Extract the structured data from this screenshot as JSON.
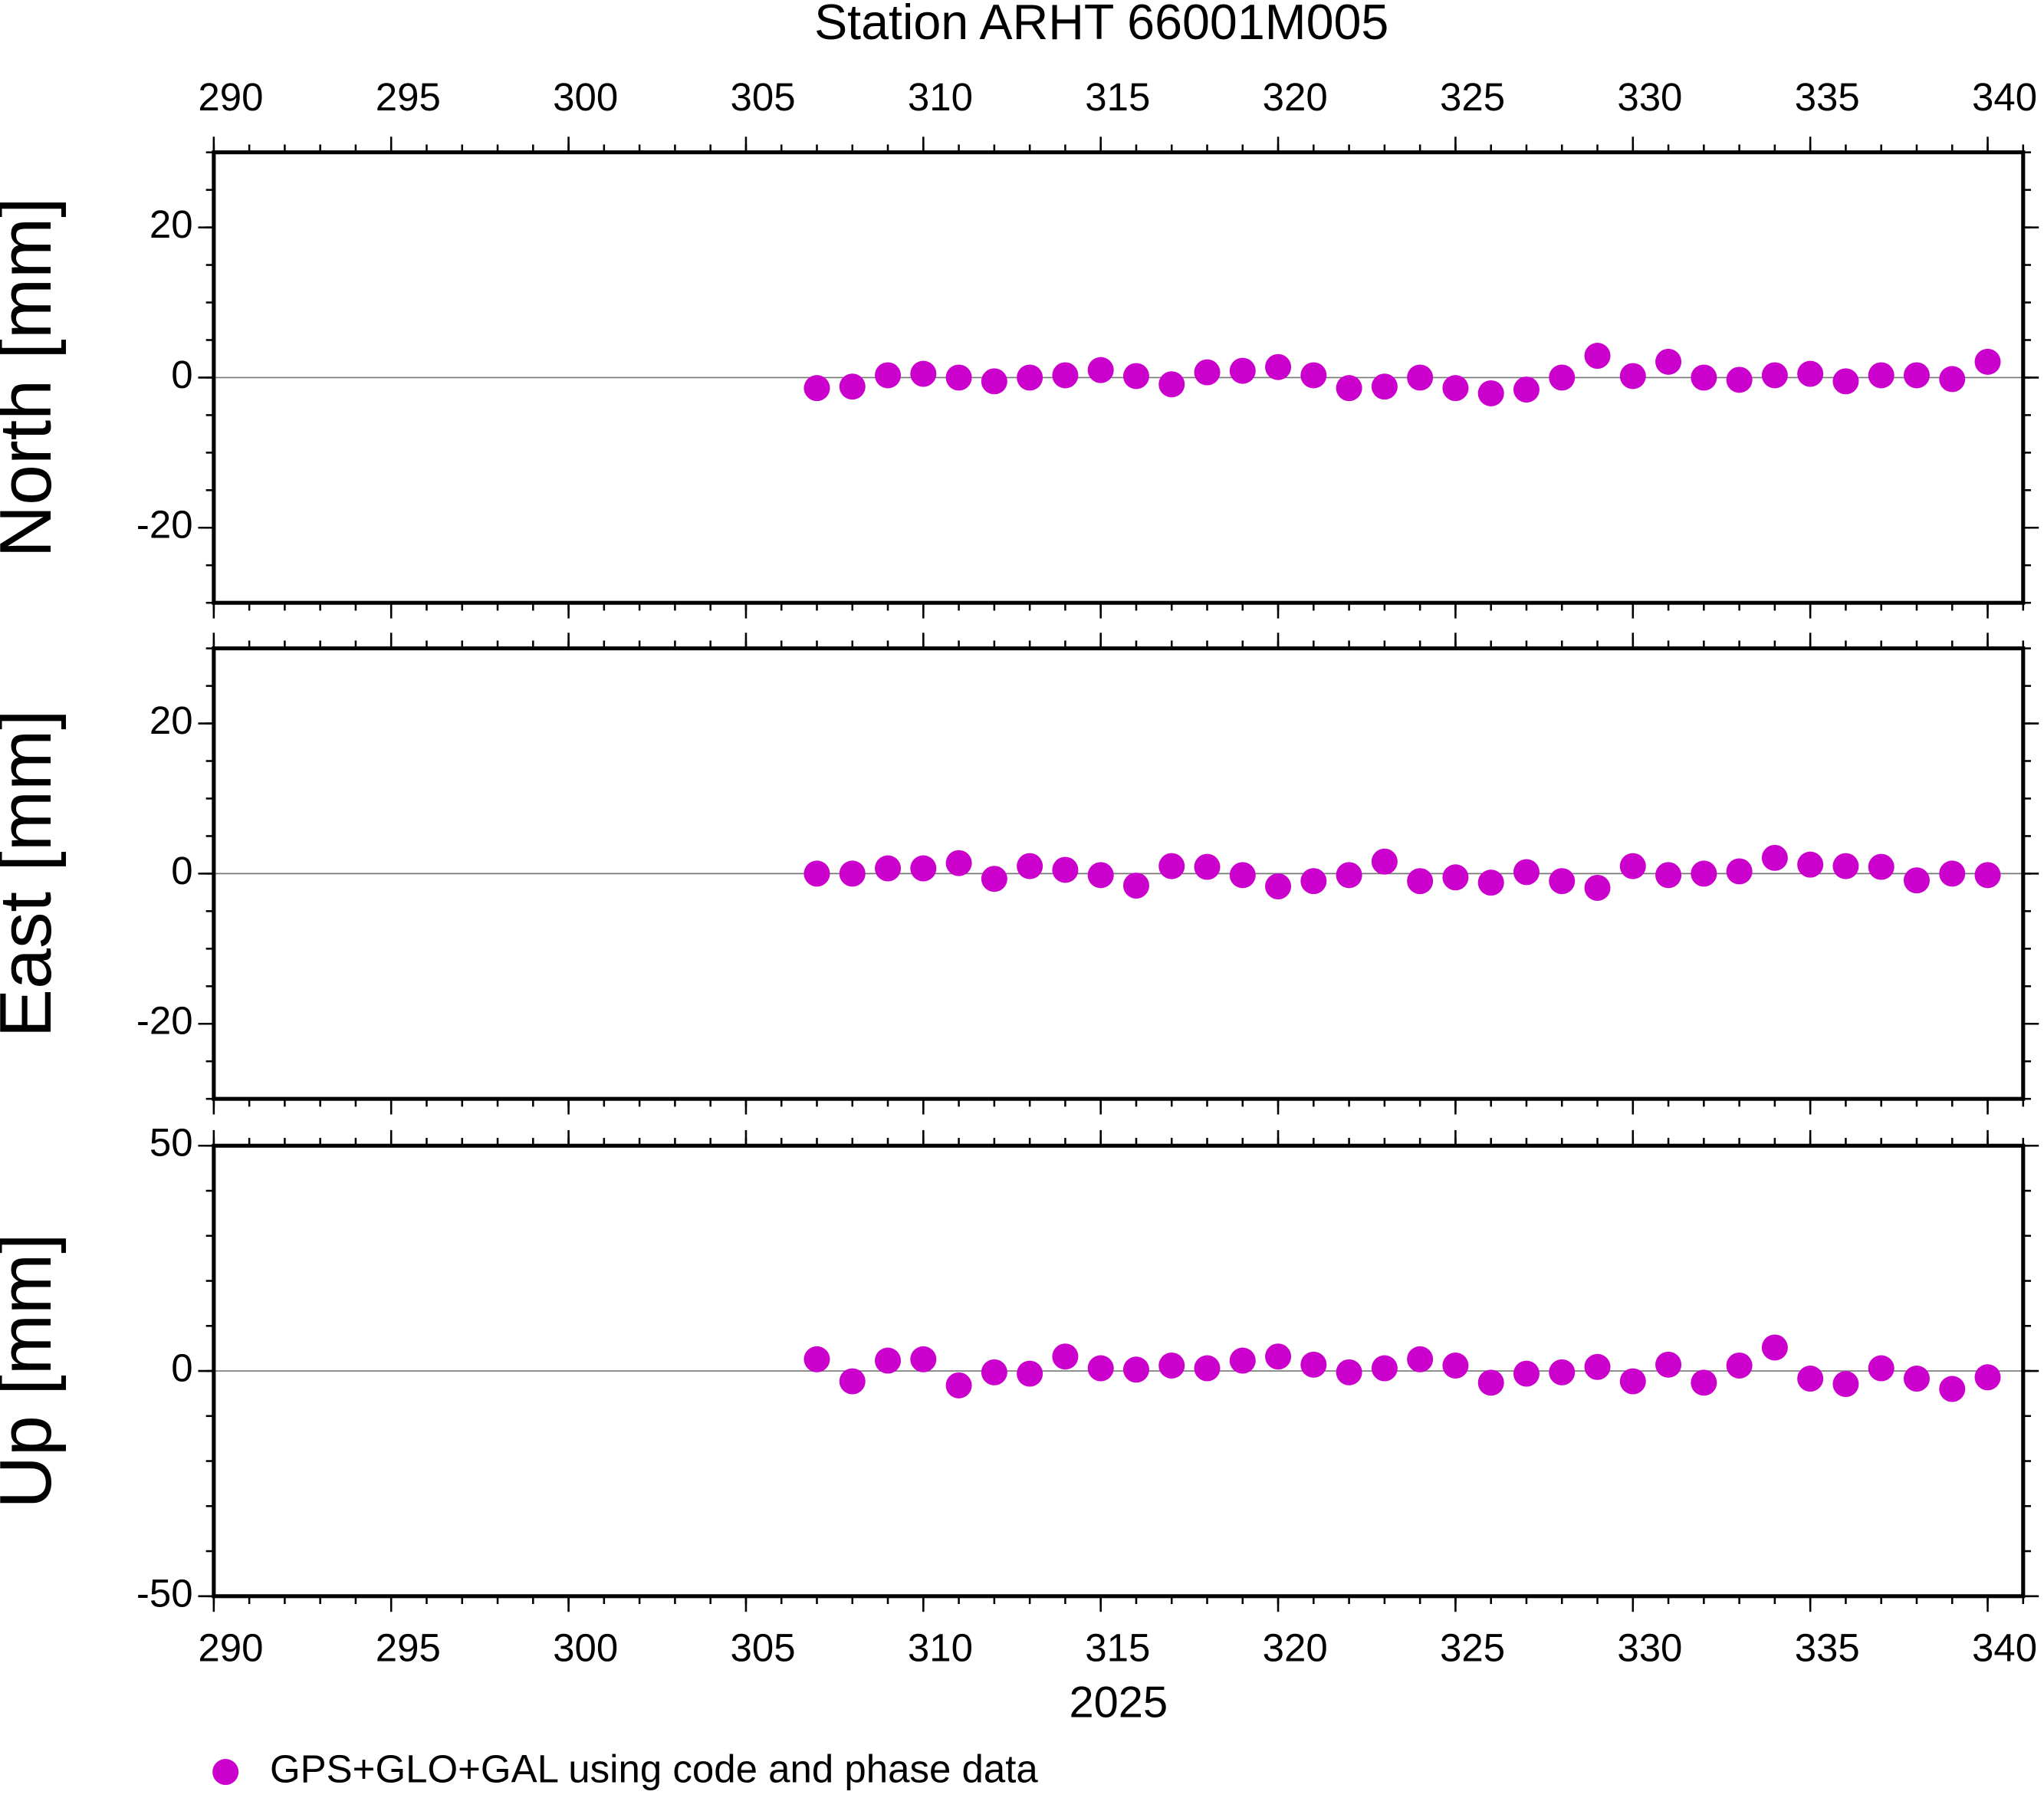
{
  "chart_data": [
    {
      "type": "scatter",
      "title": "Station ARHT 66001M005",
      "ylabel": "North [mm]",
      "x": [
        307,
        308,
        309,
        310,
        311,
        312,
        313,
        314,
        315,
        316,
        317,
        318,
        319,
        320,
        321,
        322,
        323,
        324,
        325,
        326,
        327,
        328,
        329,
        330,
        331,
        332,
        333,
        334,
        335,
        336,
        337,
        338,
        339,
        340
      ],
      "xlim": [
        290,
        341
      ],
      "xticks": [
        290,
        295,
        300,
        305,
        310,
        315,
        320,
        325,
        330,
        335,
        340
      ],
      "xminor": 1,
      "ylim": [
        -30,
        30
      ],
      "yticks": [
        -20,
        0,
        20
      ],
      "yminor": 5,
      "zero_line": true,
      "series": [
        {
          "color": "#cc00cc",
          "values": [
            -1.4,
            -1.2,
            0.3,
            0.5,
            0,
            -0.5,
            0,
            0.3,
            1.0,
            0.2,
            -0.9,
            0.7,
            0.9,
            1.4,
            0.3,
            -1.4,
            -1.2,
            0,
            -1.4,
            -2.1,
            -1.6,
            0,
            2.9,
            0.2,
            2.1,
            0,
            -0.3,
            0.3,
            0.5,
            -0.5,
            0.3,
            0.3,
            -0.2,
            2.1
          ]
        }
      ]
    },
    {
      "type": "scatter",
      "ylabel": "East [mm]",
      "x": [
        307,
        308,
        309,
        310,
        311,
        312,
        313,
        314,
        315,
        316,
        317,
        318,
        319,
        320,
        321,
        322,
        323,
        324,
        325,
        326,
        327,
        328,
        329,
        330,
        331,
        332,
        333,
        334,
        335,
        336,
        337,
        338,
        339,
        340
      ],
      "xlim": [
        290,
        341
      ],
      "xticks": [
        290,
        295,
        300,
        305,
        310,
        315,
        320,
        325,
        330,
        335,
        340
      ],
      "xminor": 1,
      "ylim": [
        -30,
        30
      ],
      "yticks": [
        -20,
        0,
        20
      ],
      "yminor": 5,
      "zero_line": true,
      "series": [
        {
          "color": "#cc00cc",
          "values": [
            0,
            0,
            0.7,
            0.7,
            1.4,
            -0.7,
            1.0,
            0.5,
            -0.2,
            -1.6,
            1.0,
            0.9,
            -0.2,
            -1.7,
            -1.0,
            -0.2,
            1.6,
            -1.0,
            -0.5,
            -1.2,
            0.2,
            -1.0,
            -1.9,
            1.0,
            -0.2,
            0,
            0.3,
            2.1,
            1.2,
            1.0,
            0.9,
            -0.9,
            0,
            -0.2
          ]
        }
      ]
    },
    {
      "type": "scatter",
      "ylabel": "Up [mm]",
      "xlabel": "2025",
      "x": [
        307,
        308,
        309,
        310,
        311,
        312,
        313,
        314,
        315,
        316,
        317,
        318,
        319,
        320,
        321,
        322,
        323,
        324,
        325,
        326,
        327,
        328,
        329,
        330,
        331,
        332,
        333,
        334,
        335,
        336,
        337,
        338,
        339,
        340
      ],
      "xlim": [
        290,
        341
      ],
      "xticks": [
        290,
        295,
        300,
        305,
        310,
        315,
        320,
        325,
        330,
        335,
        340
      ],
      "xminor": 1,
      "ylim": [
        -50,
        50
      ],
      "yticks": [
        -50,
        0,
        50
      ],
      "yminor": 10,
      "zero_line": true,
      "series": [
        {
          "name": "GPS+GLO+GAL using code and phase data",
          "color": "#cc00cc",
          "values": [
            2.6,
            -2.3,
            2.3,
            2.6,
            -3.2,
            -0.3,
            -0.6,
            3.2,
            0.6,
            0.3,
            1.2,
            0.6,
            2.3,
            3.2,
            1.4,
            -0.3,
            0.6,
            2.6,
            1.2,
            -2.6,
            -0.6,
            -0.3,
            0.9,
            -2.3,
            1.4,
            -2.6,
            1.2,
            5.2,
            -1.7,
            -2.9,
            0.6,
            -1.7,
            -4.0,
            -1.4
          ]
        }
      ]
    }
  ]
}
